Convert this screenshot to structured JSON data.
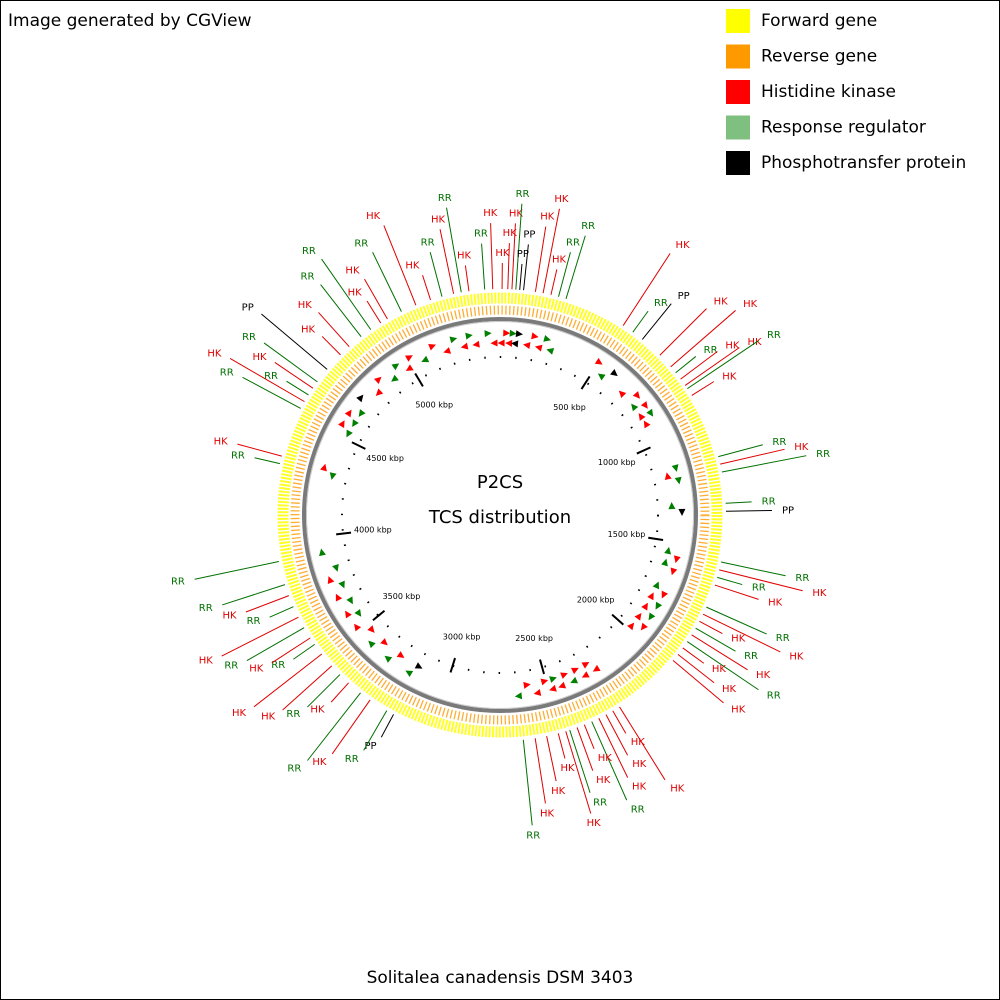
{
  "chart_data": {
    "type": "circular",
    "credit": "Image generated by CGView",
    "title": "P2CS",
    "subtitle": "TCS distribution",
    "caption": "Solitalea canadensis DSM 3403",
    "series": [
      {
        "name": "Forward gene",
        "color": "#ffff00"
      },
      {
        "name": "Reverse gene",
        "color": "#ff9900"
      },
      {
        "name": "Histidine kinase",
        "color": "#ff0000"
      },
      {
        "name": "Response regulator",
        "color": "#7fbf7f"
      },
      {
        "name": "Phosphotransfer protein",
        "color": "#000000"
      }
    ],
    "label_colors": {
      "HK": "#e00000",
      "RR": "#007000",
      "PP": "#000000"
    },
    "xlim": [
      0,
      5470
    ],
    "xticks": [
      {
        "value": 500,
        "label": "500 kbp"
      },
      {
        "value": 1000,
        "label": "1000 kbp"
      },
      {
        "value": 1500,
        "label": "1500 kbp"
      },
      {
        "value": 2000,
        "label": "2000 kbp"
      },
      {
        "value": 2500,
        "label": "2500 kbp"
      },
      {
        "value": 3000,
        "label": "3000 kbp"
      },
      {
        "value": 3500,
        "label": "3500 kbp"
      },
      {
        "value": 4000,
        "label": "4000 kbp"
      },
      {
        "value": 4500,
        "label": "4500 kbp"
      },
      {
        "value": 5000,
        "label": "5000 kbp"
      }
    ],
    "features": [
      {
        "name": "HK",
        "x": 8
      },
      {
        "name": "HK",
        "x": 30
      },
      {
        "name": "HK",
        "x": 46
      },
      {
        "name": "RR",
        "x": 61
      },
      {
        "name": "PP",
        "x": 76
      },
      {
        "name": "PP",
        "x": 91
      },
      {
        "name": "HK",
        "x": 137
      },
      {
        "name": "HK",
        "x": 167
      },
      {
        "name": "HK",
        "x": 198
      },
      {
        "name": "RR",
        "x": 228
      },
      {
        "name": "RR",
        "x": 258
      },
      {
        "name": "HK",
        "x": 502
      },
      {
        "name": "RR",
        "x": 547
      },
      {
        "name": "PP",
        "x": 593
      },
      {
        "name": "HK",
        "x": 684
      },
      {
        "name": "HK",
        "x": 745
      },
      {
        "name": "RR",
        "x": 775
      },
      {
        "name": "HK",
        "x": 806
      },
      {
        "name": "HK",
        "x": 836
      },
      {
        "name": "RR",
        "x": 851
      },
      {
        "name": "HK",
        "x": 882
      },
      {
        "name": "RR",
        "x": 1140
      },
      {
        "name": "HK",
        "x": 1170
      },
      {
        "name": "RR",
        "x": 1201
      },
      {
        "name": "RR",
        "x": 1322
      },
      {
        "name": "PP",
        "x": 1353
      },
      {
        "name": "RR",
        "x": 1550
      },
      {
        "name": "HK",
        "x": 1581
      },
      {
        "name": "RR",
        "x": 1611
      },
      {
        "name": "HK",
        "x": 1642
      },
      {
        "name": "RR",
        "x": 1733
      },
      {
        "name": "HK",
        "x": 1763
      },
      {
        "name": "HK",
        "x": 1794
      },
      {
        "name": "RR",
        "x": 1824
      },
      {
        "name": "HK",
        "x": 1854
      },
      {
        "name": "RR",
        "x": 1885
      },
      {
        "name": "HK",
        "x": 1915
      },
      {
        "name": "HK",
        "x": 1946
      },
      {
        "name": "HK",
        "x": 1976
      },
      {
        "name": "HK",
        "x": 2250
      },
      {
        "name": "HK",
        "x": 2280
      },
      {
        "name": "HK",
        "x": 2310
      },
      {
        "name": "HK",
        "x": 2341
      },
      {
        "name": "RR",
        "x": 2371
      },
      {
        "name": "HK",
        "x": 2402
      },
      {
        "name": "HK",
        "x": 2432
      },
      {
        "name": "RR",
        "x": 2462
      },
      {
        "name": "HK",
        "x": 2478
      },
      {
        "name": "HK",
        "x": 2508
      },
      {
        "name": "HK",
        "x": 2554
      },
      {
        "name": "HK",
        "x": 2599
      },
      {
        "name": "RR",
        "x": 2645
      },
      {
        "name": "PP",
        "x": 3162
      },
      {
        "name": "RR",
        "x": 3192
      },
      {
        "name": "HK",
        "x": 3268
      },
      {
        "name": "RR",
        "x": 3314
      },
      {
        "name": "HK",
        "x": 3374
      },
      {
        "name": "RR",
        "x": 3420
      },
      {
        "name": "HK",
        "x": 3466
      },
      {
        "name": "HK",
        "x": 3526
      },
      {
        "name": "RR",
        "x": 3572
      },
      {
        "name": "HK",
        "x": 3602
      },
      {
        "name": "RR",
        "x": 3648
      },
      {
        "name": "HK",
        "x": 3694
      },
      {
        "name": "RR",
        "x": 3739
      },
      {
        "name": "HK",
        "x": 3785
      },
      {
        "name": "RR",
        "x": 3830
      },
      {
        "name": "RR",
        "x": 3922
      },
      {
        "name": "RR",
        "x": 4302
      },
      {
        "name": "HK",
        "x": 4332
      },
      {
        "name": "RR",
        "x": 4530
      },
      {
        "name": "HK",
        "x": 4560
      },
      {
        "name": "RR",
        "x": 4590
      },
      {
        "name": "HK",
        "x": 4621
      },
      {
        "name": "RR",
        "x": 4651
      },
      {
        "name": "PP",
        "x": 4712
      },
      {
        "name": "HK",
        "x": 4788
      },
      {
        "name": "HK",
        "x": 4834
      },
      {
        "name": "RR",
        "x": 4894
      },
      {
        "name": "RR",
        "x": 4940
      },
      {
        "name": "HK",
        "x": 4986
      },
      {
        "name": "HK",
        "x": 5016
      },
      {
        "name": "RR",
        "x": 5077
      },
      {
        "name": "HK",
        "x": 5138
      },
      {
        "name": "HK",
        "x": 5198
      },
      {
        "name": "RR",
        "x": 5244
      },
      {
        "name": "HK",
        "x": 5290
      },
      {
        "name": "RR",
        "x": 5320
      },
      {
        "name": "HK",
        "x": 5350
      },
      {
        "name": "RR",
        "x": 5411
      },
      {
        "name": "HK",
        "x": 5442
      }
    ]
  }
}
